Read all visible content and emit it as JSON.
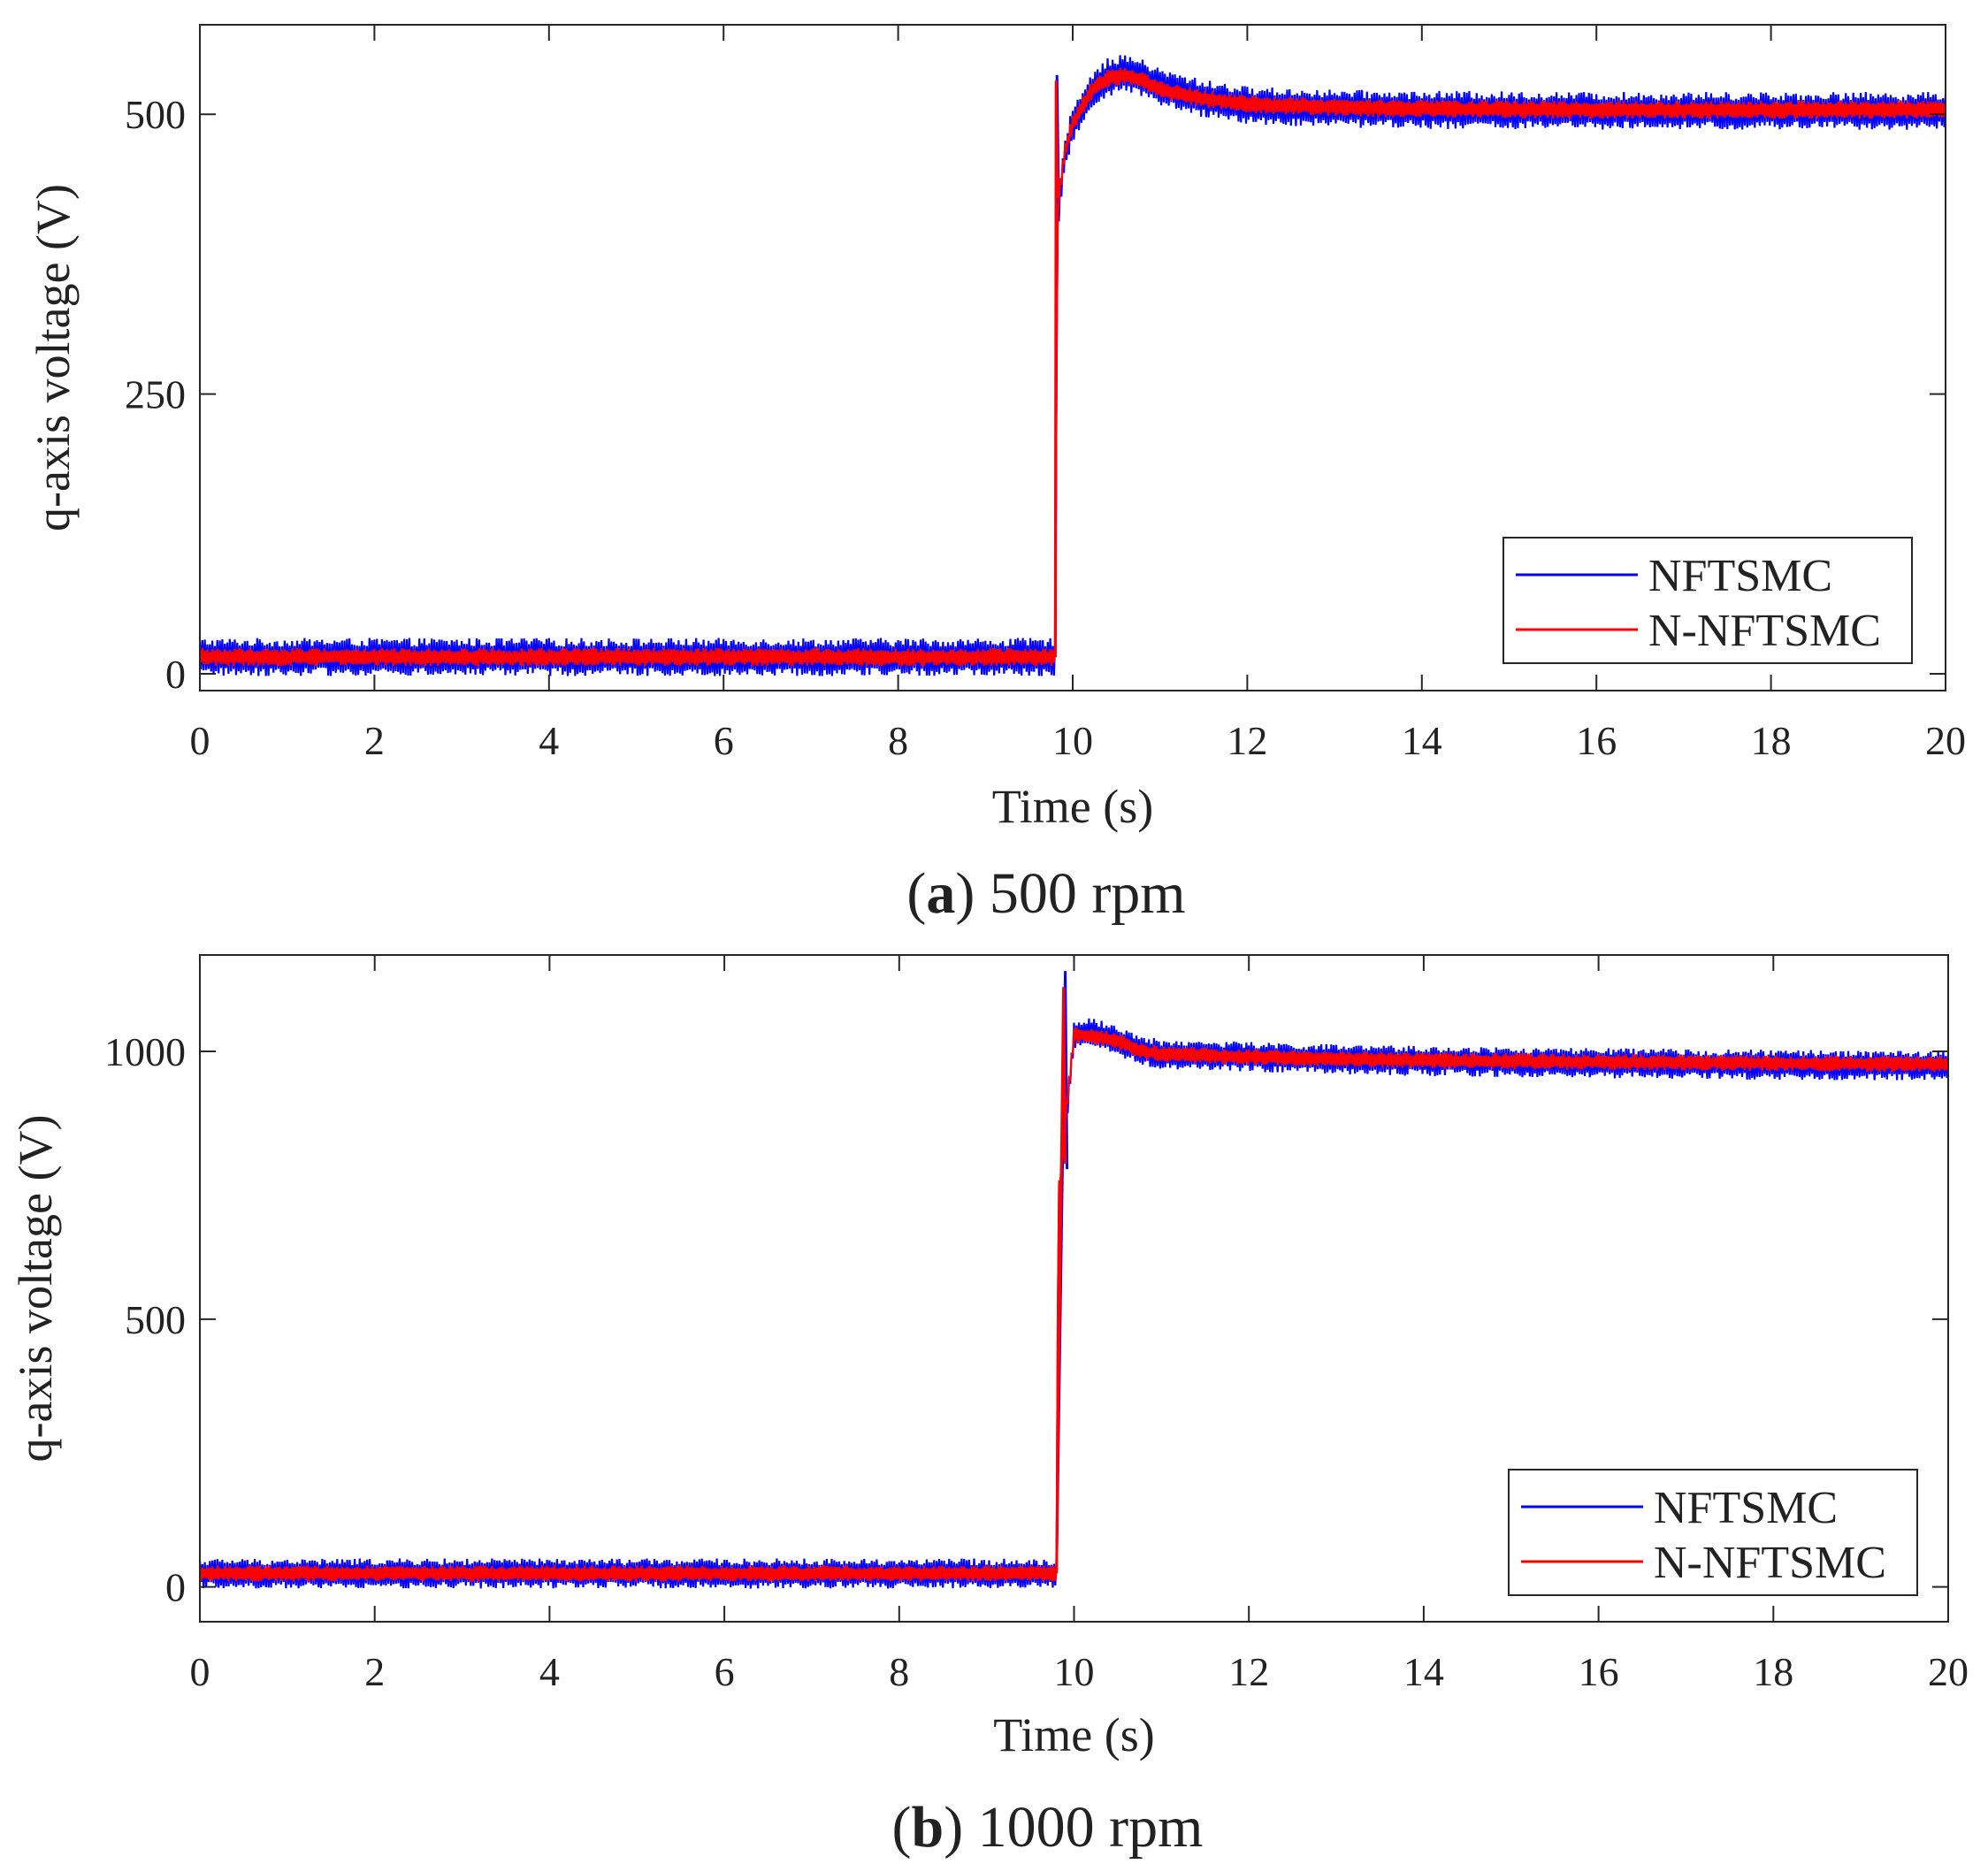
{
  "chart_data": [
    {
      "type": "line",
      "panel": "a",
      "caption_letter": "a",
      "caption_text": "500 rpm",
      "xlabel": "Time (s)",
      "ylabel": "q-axis voltage (V)",
      "xlim": [
        0,
        20
      ],
      "ylim": [
        -15,
        580
      ],
      "xticks": [
        0,
        2,
        4,
        6,
        8,
        10,
        12,
        14,
        16,
        18,
        20
      ],
      "yticks": [
        0,
        250,
        500
      ],
      "legend_position": "bottom-right",
      "step_time": 9.8,
      "series": [
        {
          "name": "NFTSMC",
          "color": "#0000ff",
          "ripple": 17,
          "spike": [
            9.82,
            535
          ],
          "x": [
            0,
            2,
            4,
            6,
            8,
            9.8,
            9.82,
            9.84,
            9.9,
            10.0,
            10.2,
            10.4,
            10.6,
            10.8,
            11.0,
            11.5,
            12,
            13,
            14,
            16,
            18,
            20
          ],
          "y": [
            15,
            15,
            15,
            15,
            15,
            15,
            380,
            420,
            460,
            490,
            520,
            533,
            537,
            532,
            524,
            514,
            508,
            505,
            504,
            503,
            503,
            503
          ]
        },
        {
          "name": "N-NFTSMC",
          "color": "#ff0000",
          "ripple": 8,
          "spike": [
            9.81,
            530
          ],
          "x": [
            0,
            2,
            4,
            6,
            8,
            9.8,
            9.82,
            9.84,
            9.9,
            10.0,
            10.2,
            10.4,
            10.6,
            10.8,
            11.0,
            11.5,
            12,
            13,
            14,
            16,
            18,
            20
          ],
          "y": [
            15,
            15,
            15,
            15,
            15,
            15,
            390,
            425,
            462,
            492,
            520,
            532,
            535,
            530,
            522,
            514,
            509,
            506,
            505,
            504,
            504,
            504
          ]
        }
      ]
    },
    {
      "type": "line",
      "panel": "b",
      "caption_letter": "b",
      "caption_text": "1000 rpm",
      "xlabel": "Time (s)",
      "ylabel": "q-axis voltage (V)",
      "xlim": [
        0,
        20
      ],
      "ylim": [
        -65,
        1180
      ],
      "xticks": [
        0,
        2,
        4,
        6,
        8,
        10,
        12,
        14,
        16,
        18,
        20
      ],
      "yticks": [
        0,
        500,
        1000
      ],
      "legend_position": "bottom-right",
      "step_time": 9.8,
      "series": [
        {
          "name": "NFTSMC",
          "color": "#0000ff",
          "ripple": 28,
          "spike": [
            9.9,
            1150
          ],
          "x": [
            0,
            2,
            4,
            6,
            8,
            9.8,
            9.82,
            9.86,
            9.9,
            10.0,
            10.2,
            10.5,
            10.8,
            11.0,
            12,
            13,
            14,
            16,
            18,
            20
          ],
          "y": [
            25,
            25,
            25,
            25,
            25,
            25,
            720,
            780,
            860,
            1030,
            1035,
            1020,
            1000,
            995,
            990,
            985,
            982,
            978,
            975,
            973
          ]
        },
        {
          "name": "N-NFTSMC",
          "color": "#ff0000",
          "ripple": 15,
          "spike": [
            9.88,
            1120
          ],
          "x": [
            0,
            2,
            4,
            6,
            8,
            9.8,
            9.82,
            9.86,
            9.9,
            10.0,
            10.2,
            10.5,
            10.8,
            11.0,
            12,
            13,
            14,
            16,
            18,
            20
          ],
          "y": [
            25,
            25,
            25,
            25,
            25,
            25,
            730,
            790,
            870,
            1030,
            1030,
            1018,
            1000,
            995,
            990,
            986,
            983,
            980,
            978,
            976
          ]
        }
      ]
    }
  ]
}
